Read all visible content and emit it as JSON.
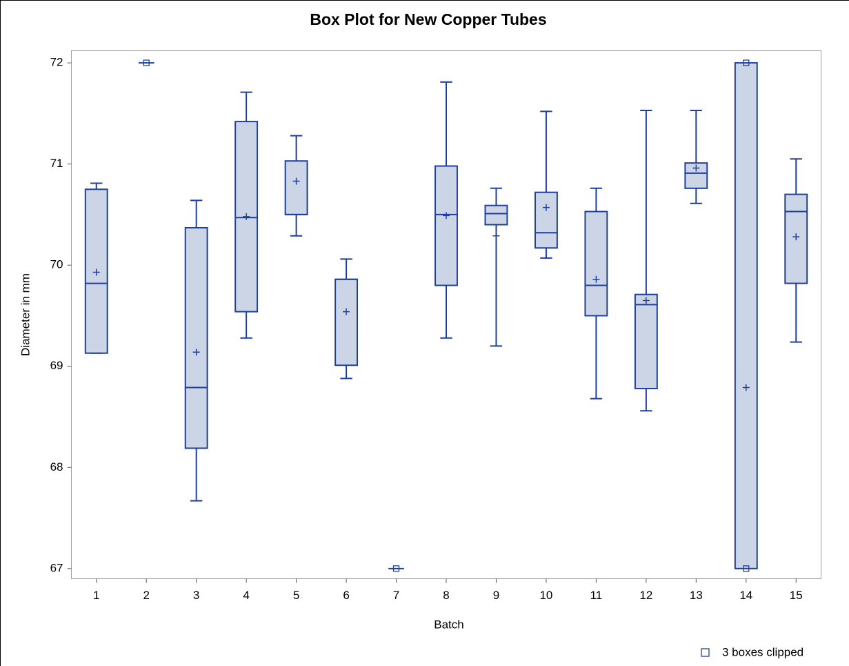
{
  "chart_data": {
    "type": "box",
    "title": "Box Plot for New Copper Tubes",
    "x_label": "Batch",
    "y_label": "Diameter in mm",
    "categories": [
      "1",
      "2",
      "3",
      "4",
      "5",
      "6",
      "7",
      "8",
      "9",
      "10",
      "11",
      "12",
      "13",
      "14",
      "15"
    ],
    "boxes": [
      {
        "min": 69.13,
        "q1": 69.13,
        "median": 69.82,
        "q3": 70.75,
        "max": 70.81,
        "mean": 69.93
      },
      {
        "clipped": "high"
      },
      {
        "min": 67.67,
        "q1": 68.19,
        "median": 68.79,
        "q3": 70.37,
        "max": 70.64,
        "mean": 69.14
      },
      {
        "min": 69.28,
        "q1": 69.54,
        "median": 70.47,
        "q3": 71.42,
        "max": 71.71,
        "mean": 70.48
      },
      {
        "min": 70.29,
        "q1": 70.5,
        "median": 70.5,
        "q3": 71.03,
        "max": 71.28,
        "mean": 70.83
      },
      {
        "min": 68.88,
        "q1": 69.01,
        "median": 69.86,
        "q3": 69.86,
        "max": 70.06,
        "mean": 69.54
      },
      {
        "clipped": "low"
      },
      {
        "min": 69.28,
        "q1": 69.8,
        "median": 70.5,
        "q3": 70.98,
        "max": 71.81,
        "mean": 70.49
      },
      {
        "min": 69.2,
        "q1": 70.4,
        "median": 70.51,
        "q3": 70.59,
        "max": 70.76,
        "mean": 70.29
      },
      {
        "min": 70.07,
        "q1": 70.17,
        "median": 70.32,
        "q3": 70.72,
        "max": 71.52,
        "mean": 70.57
      },
      {
        "min": 68.68,
        "q1": 69.5,
        "median": 69.8,
        "q3": 70.53,
        "max": 70.76,
        "mean": 69.86
      },
      {
        "min": 68.56,
        "q1": 68.78,
        "median": 69.61,
        "q3": 69.71,
        "max": 71.53,
        "mean": 69.65
      },
      {
        "min": 70.61,
        "q1": 70.76,
        "median": 70.91,
        "q3": 71.01,
        "max": 71.53,
        "mean": 70.96
      },
      {
        "mean": 68.79,
        "clipped": "both"
      },
      {
        "min": 69.24,
        "q1": 69.82,
        "median": 70.53,
        "q3": 70.7,
        "max": 71.05,
        "mean": 70.28
      }
    ],
    "box_fill": "#cbd5e6",
    "color": "#1f3f9f",
    "ylim": [
      66.9,
      72.12
    ],
    "yticks": [
      67,
      68,
      69,
      70,
      71,
      72
    ],
    "clip_note": "3 boxes clipped"
  }
}
